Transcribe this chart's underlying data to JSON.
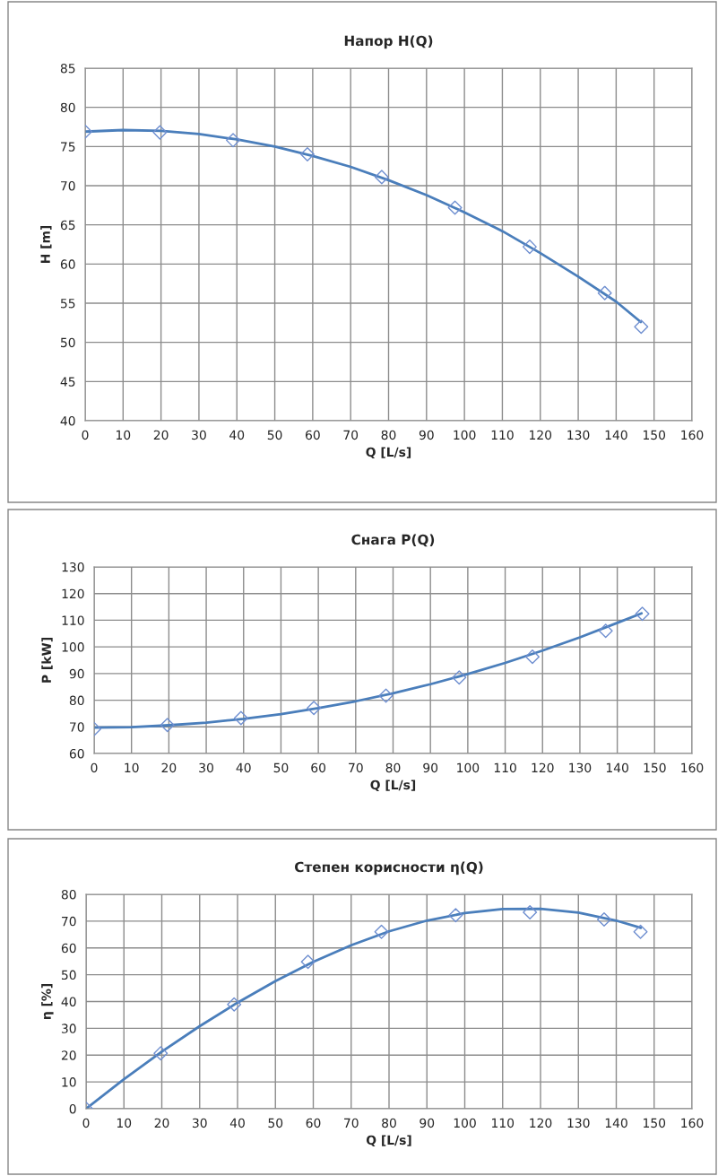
{
  "chart_data": [
    {
      "type": "scatter",
      "title": "Напор H(Q)",
      "xlabel": "Q [L/s]",
      "ylabel": "H [m]",
      "xlim": [
        0,
        160
      ],
      "xticks": [
        0,
        10,
        20,
        30,
        40,
        50,
        60,
        70,
        80,
        90,
        100,
        110,
        120,
        130,
        140,
        150,
        160
      ],
      "ylim": [
        40,
        85
      ],
      "yticks": [
        40,
        45,
        50,
        55,
        60,
        65,
        70,
        75,
        80,
        85
      ],
      "grid": true,
      "series": [
        {
          "marker": "diamond",
          "color": "#6f8fd0",
          "x": [
            0,
            19.7,
            39,
            58.6,
            78.2,
            97.5,
            117.2,
            137,
            146.6
          ],
          "values": [
            76.9,
            76.8,
            75.8,
            74.0,
            71.1,
            67.2,
            62.2,
            56.3,
            52.0
          ]
        },
        {
          "type": "line",
          "marker": "none",
          "color": "#4a7ebb",
          "x": [
            0,
            10,
            20,
            30,
            40,
            50,
            60,
            70,
            80,
            90,
            100,
            110,
            120,
            130,
            140,
            146.5
          ],
          "values": [
            76.9,
            77.1,
            77.0,
            76.6,
            75.9,
            75.0,
            73.8,
            72.4,
            70.7,
            68.8,
            66.6,
            64.2,
            61.4,
            58.4,
            55.2,
            52.6
          ]
        }
      ]
    },
    {
      "type": "scatter",
      "title": "Снага P(Q)",
      "xlabel": "Q [L/s]",
      "ylabel": "P [kW]",
      "xlim": [
        0,
        160
      ],
      "xticks": [
        0,
        10,
        20,
        30,
        40,
        50,
        60,
        70,
        80,
        90,
        100,
        110,
        120,
        130,
        140,
        150,
        160
      ],
      "ylim": [
        60,
        130
      ],
      "yticks": [
        60,
        70,
        80,
        90,
        100,
        110,
        120,
        130
      ],
      "grid": true,
      "series": [
        {
          "marker": "diamond",
          "color": "#6f8fd0",
          "x": [
            0,
            19.6,
            39.3,
            58.8,
            78.1,
            97.7,
            117.3,
            136.9,
            146.7
          ],
          "values": [
            69.2,
            70.7,
            73.3,
            77.1,
            81.7,
            88.5,
            96.3,
            106,
            112.4
          ]
        },
        {
          "type": "line",
          "marker": "none",
          "color": "#4a7ebb",
          "x": [
            0,
            10,
            20,
            30,
            40,
            50,
            60,
            70,
            80,
            90,
            100,
            110,
            120,
            130,
            140,
            146.5
          ],
          "values": [
            69.7,
            69.9,
            70.6,
            71.6,
            73.0,
            74.8,
            77.0,
            79.6,
            82.6,
            86.0,
            89.8,
            94.0,
            98.6,
            103.6,
            109.0,
            112.6
          ]
        }
      ]
    },
    {
      "type": "scatter",
      "title": "Степен корисности η(Q)",
      "xlabel": "Q [L/s]",
      "ylabel": "η [%]",
      "xlim": [
        0,
        160
      ],
      "xticks": [
        0,
        10,
        20,
        30,
        40,
        50,
        60,
        70,
        80,
        90,
        100,
        110,
        120,
        130,
        140,
        150,
        160
      ],
      "ylim": [
        0,
        80
      ],
      "yticks": [
        0,
        10,
        20,
        30,
        40,
        50,
        60,
        70,
        80
      ],
      "grid": true,
      "series": [
        {
          "marker": "diamond",
          "color": "#6f8fd0",
          "x": [
            0,
            19.7,
            39.1,
            58.6,
            78,
            97.6,
            117.2,
            136.8,
            146.4
          ],
          "values": [
            0,
            20.7,
            38.9,
            54.8,
            66.0,
            72.2,
            73.3,
            70.6,
            66.0
          ]
        },
        {
          "type": "line",
          "marker": "none",
          "color": "#4a7ebb",
          "x": [
            0,
            10,
            20,
            30,
            40,
            50,
            60,
            70,
            80,
            90,
            100,
            110,
            120,
            130,
            140,
            146.5
          ],
          "values": [
            0,
            11,
            21.3,
            30.8,
            39.6,
            47.6,
            54.8,
            61.0,
            66.2,
            70.2,
            73.0,
            74.5,
            74.6,
            73.2,
            70.2,
            67.5
          ]
        }
      ]
    }
  ]
}
